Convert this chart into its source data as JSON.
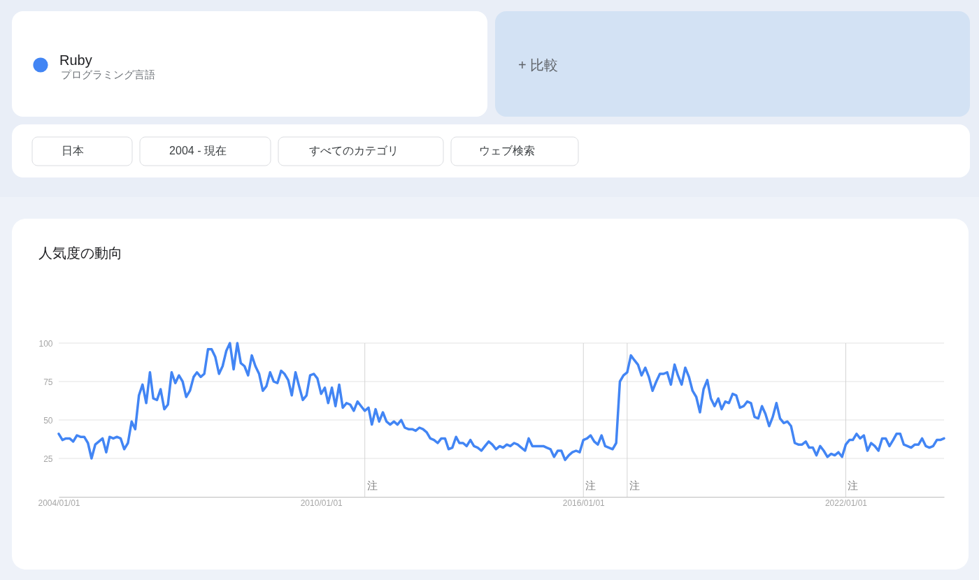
{
  "chart_data": {
    "type": "line",
    "title": "人気度の動向",
    "annotations": [
      "プログラミング言語",
      "+ 比較",
      "日本",
      "2004 - 現在",
      "すべてのカテゴリ",
      "ウェブ検索"
    ],
    "x": [
      "2004-01",
      "2004-02",
      "2004-03",
      "2004-04",
      "2004-05",
      "2004-06",
      "2004-07",
      "2004-08",
      "2004-09",
      "2004-10",
      "2004-11",
      "2004-12",
      "2005-01",
      "2005-02",
      "2005-03",
      "2005-04",
      "2005-05",
      "2005-06",
      "2005-07",
      "2005-08",
      "2005-09",
      "2005-10",
      "2005-11",
      "2005-12",
      "2006-01",
      "2006-02",
      "2006-03",
      "2006-04",
      "2006-05",
      "2006-06",
      "2006-07",
      "2006-08",
      "2006-09",
      "2006-10",
      "2006-11",
      "2006-12",
      "2007-01",
      "2007-02",
      "2007-03",
      "2007-04",
      "2007-05",
      "2007-06",
      "2007-07",
      "2007-08",
      "2007-09",
      "2007-10",
      "2007-11",
      "2007-12",
      "2008-01",
      "2008-02",
      "2008-03",
      "2008-04",
      "2008-05",
      "2008-06",
      "2008-07",
      "2008-08",
      "2008-09",
      "2008-10",
      "2008-11",
      "2008-12",
      "2009-01",
      "2009-02",
      "2009-03",
      "2009-04",
      "2009-05",
      "2009-06",
      "2009-07",
      "2009-08",
      "2009-09",
      "2009-10",
      "2009-11",
      "2009-12",
      "2010-01",
      "2010-02",
      "2010-03",
      "2010-04",
      "2010-05",
      "2010-06",
      "2010-07",
      "2010-08",
      "2010-09",
      "2010-10",
      "2010-11",
      "2010-12",
      "2011-01",
      "2011-02",
      "2011-03",
      "2011-04",
      "2011-05",
      "2011-06",
      "2011-07",
      "2011-08",
      "2011-09",
      "2011-10",
      "2011-11",
      "2011-12",
      "2012-01",
      "2012-02",
      "2012-03",
      "2012-04",
      "2012-05",
      "2012-06",
      "2012-07",
      "2012-08",
      "2012-09",
      "2012-10",
      "2012-11",
      "2012-12",
      "2013-01",
      "2013-02",
      "2013-03",
      "2013-04",
      "2013-05",
      "2013-06",
      "2013-07",
      "2013-08",
      "2013-09",
      "2013-10",
      "2013-11",
      "2013-12",
      "2014-01",
      "2014-02",
      "2014-03",
      "2014-04",
      "2014-05",
      "2014-06",
      "2014-07",
      "2014-08",
      "2014-09",
      "2014-10",
      "2014-11",
      "2014-12",
      "2015-01",
      "2015-02",
      "2015-03",
      "2015-04",
      "2015-05",
      "2015-06",
      "2015-07",
      "2015-08",
      "2015-09",
      "2015-10",
      "2015-11",
      "2015-12",
      "2016-01",
      "2016-02",
      "2016-03",
      "2016-04",
      "2016-05",
      "2016-06",
      "2016-07",
      "2016-08",
      "2016-09",
      "2016-10",
      "2016-11",
      "2016-12",
      "2017-01",
      "2017-02",
      "2017-03",
      "2017-04",
      "2017-05",
      "2017-06",
      "2017-07",
      "2017-08",
      "2017-09",
      "2017-10",
      "2017-11",
      "2017-12",
      "2018-01",
      "2018-02",
      "2018-03",
      "2018-04",
      "2018-05",
      "2018-06",
      "2018-07",
      "2018-08",
      "2018-09",
      "2018-10",
      "2018-11",
      "2018-12",
      "2019-01",
      "2019-02",
      "2019-03",
      "2019-04",
      "2019-05",
      "2019-06",
      "2019-07",
      "2019-08",
      "2019-09",
      "2019-10",
      "2019-11",
      "2019-12",
      "2020-01",
      "2020-02",
      "2020-03",
      "2020-04",
      "2020-05",
      "2020-06",
      "2020-07",
      "2020-08",
      "2020-09",
      "2020-10",
      "2020-11",
      "2020-12",
      "2021-01",
      "2021-02",
      "2021-03",
      "2021-04",
      "2021-05",
      "2021-06",
      "2021-07",
      "2021-08",
      "2021-09",
      "2021-10",
      "2021-11",
      "2021-12",
      "2022-01",
      "2022-02",
      "2022-03",
      "2022-04",
      "2022-05",
      "2022-06",
      "2022-07",
      "2022-08",
      "2022-09",
      "2022-10",
      "2022-11",
      "2022-12",
      "2023-01",
      "2023-02",
      "2023-03",
      "2023-04",
      "2023-05",
      "2023-06",
      "2023-07",
      "2023-08",
      "2023-09",
      "2023-10",
      "2023-11",
      "2023-12",
      "2024-01",
      "2024-02",
      "2024-03",
      "2024-04"
    ],
    "series": [
      {
        "name": "Ruby",
        "color": "#4285f4",
        "values": [
          41,
          37,
          38,
          38,
          36,
          40,
          39,
          39,
          35,
          25,
          34,
          36,
          38,
          29,
          39,
          38,
          39,
          38,
          31,
          35,
          49,
          44,
          66,
          73,
          61,
          81,
          64,
          63,
          70,
          57,
          60,
          81,
          74,
          79,
          75,
          65,
          69,
          78,
          81,
          78,
          80,
          96,
          96,
          91,
          80,
          85,
          95,
          100,
          83,
          100,
          87,
          85,
          79,
          92,
          85,
          80,
          69,
          72,
          81,
          75,
          74,
          82,
          80,
          76,
          66,
          81,
          72,
          63,
          66,
          79,
          80,
          77,
          67,
          71,
          61,
          71,
          59,
          73,
          58,
          61,
          60,
          56,
          62,
          59,
          56,
          58,
          47,
          57,
          49,
          55,
          49,
          47,
          49,
          47,
          50,
          45,
          44,
          44,
          43,
          45,
          44,
          42,
          38,
          37,
          35,
          38,
          38,
          31,
          32,
          39,
          35,
          35,
          33,
          37,
          33,
          32,
          30,
          33,
          36,
          34,
          31,
          33,
          32,
          34,
          33,
          35,
          34,
          32,
          30,
          38,
          33,
          33,
          33,
          33,
          32,
          31,
          26,
          30,
          30,
          24,
          27,
          29,
          30,
          29,
          37,
          38,
          40,
          36,
          34,
          40,
          33,
          32,
          31,
          35,
          75,
          79,
          81,
          92,
          89,
          86,
          79,
          84,
          78,
          69,
          75,
          80,
          80,
          81,
          73,
          86,
          79,
          73,
          84,
          78,
          69,
          65,
          55,
          70,
          76,
          64,
          59,
          64,
          57,
          62,
          61,
          67,
          66,
          58,
          59,
          62,
          61,
          52,
          51,
          59,
          54,
          46,
          52,
          61,
          51,
          48,
          49,
          46,
          35,
          34,
          34,
          36,
          32,
          32,
          27,
          33,
          30,
          26,
          28,
          27,
          29,
          26,
          34,
          37,
          37,
          41,
          38,
          40,
          30,
          35,
          33,
          30,
          38,
          38,
          33,
          37,
          41,
          41,
          34,
          33,
          32,
          34,
          34,
          38,
          33,
          32,
          33,
          37,
          37,
          38
        ]
      }
    ],
    "xlim": [
      "2004-01",
      "2024-04"
    ],
    "xticks": [
      {
        "value": "2004-01-01",
        "label": "2004/01/01"
      },
      {
        "value": "2010-01-01",
        "label": "2010/01/01"
      },
      {
        "value": "2016-01-01",
        "label": "2016/01/01"
      },
      {
        "value": "2022-01-01",
        "label": "2022/01/01"
      }
    ],
    "ylim": [
      0,
      100
    ],
    "yticks": [
      25,
      50,
      75,
      100
    ],
    "grid": "y",
    "legend": "top left",
    "line_style": "solid",
    "ref_lines": [
      {
        "axis": "x",
        "value": "2011-01",
        "label": "注",
        "color": "#d4d4d4"
      },
      {
        "axis": "x",
        "value": "2016-01",
        "label": "注",
        "color": "#d4d4d4"
      },
      {
        "axis": "x",
        "value": "2017-01",
        "label": "注",
        "color": "#d4d4d4"
      },
      {
        "axis": "x",
        "value": "2022-01",
        "label": "注",
        "color": "#d4d4d4"
      }
    ]
  }
}
